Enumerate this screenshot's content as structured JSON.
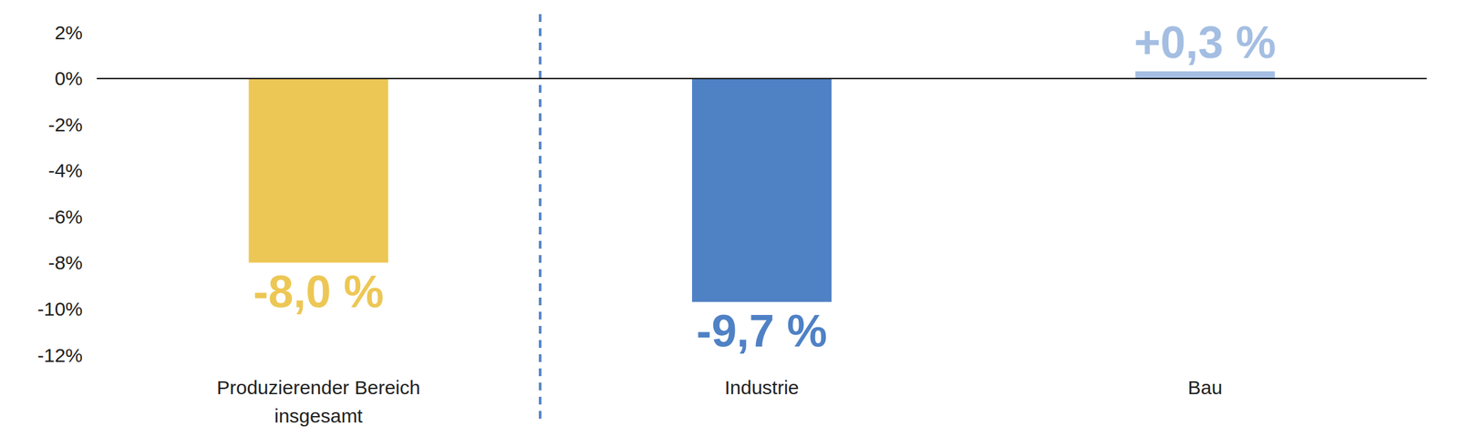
{
  "chart_data": {
    "type": "bar",
    "categories": [
      "Produzierender Bereich\ninsgesamt",
      "Industrie",
      "Bau"
    ],
    "values": [
      -8.0,
      -9.7,
      0.3
    ],
    "value_labels": [
      "-8,0 %",
      "-9,7 %",
      "+0,3 %"
    ],
    "colors": [
      "#edc755",
      "#4f81c5",
      "#a4bee2"
    ],
    "ylim": [
      -12,
      2
    ],
    "yticks": [
      {
        "value": -12,
        "label": "-12%"
      },
      {
        "value": -10,
        "label": "-10%"
      },
      {
        "value": -8,
        "label": "-8%"
      },
      {
        "value": -6,
        "label": "-6%"
      },
      {
        "value": -4,
        "label": "-4%"
      },
      {
        "value": -2,
        "label": "-2%"
      },
      {
        "value": 0,
        "label": "0%"
      },
      {
        "value": 2,
        "label": "2%"
      }
    ],
    "grid": false,
    "data_labels": true
  }
}
